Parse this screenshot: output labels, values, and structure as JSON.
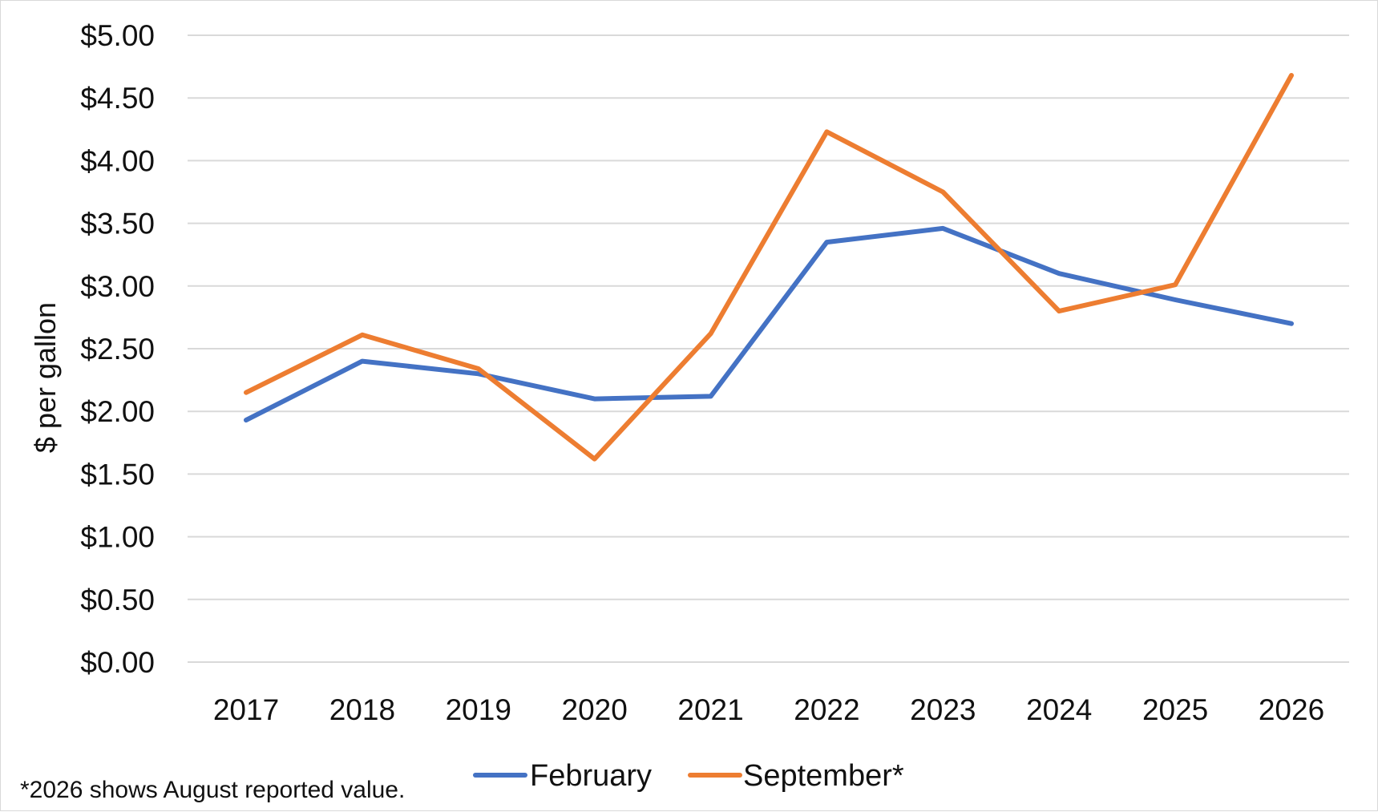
{
  "chart_data": {
    "type": "line",
    "categories": [
      "2017",
      "2018",
      "2019",
      "2020",
      "2021",
      "2022",
      "2023",
      "2024",
      "2025",
      "2026"
    ],
    "series": [
      {
        "name": "February",
        "color": "#4472C4",
        "values": [
          1.93,
          2.4,
          2.3,
          2.1,
          2.12,
          3.35,
          3.46,
          3.1,
          2.89,
          2.7
        ]
      },
      {
        "name": "September*",
        "color": "#ED7D31",
        "values": [
          2.15,
          2.61,
          2.34,
          1.62,
          2.62,
          4.23,
          3.75,
          2.8,
          3.01,
          4.68
        ]
      }
    ],
    "ylabel": "$ per gallon",
    "xlabel": "",
    "ylim": [
      0,
      5
    ],
    "yticks": [
      "$0.00",
      "$0.50",
      "$1.00",
      "$1.50",
      "$2.00",
      "$2.50",
      "$3.00",
      "$3.50",
      "$4.00",
      "$4.50",
      "$5.00"
    ],
    "ytick_values": [
      0,
      0.5,
      1,
      1.5,
      2,
      2.5,
      3,
      3.5,
      4,
      4.5,
      5
    ],
    "grid": true,
    "legend_position": "bottom",
    "footnote": "*2026 shows August reported value."
  }
}
